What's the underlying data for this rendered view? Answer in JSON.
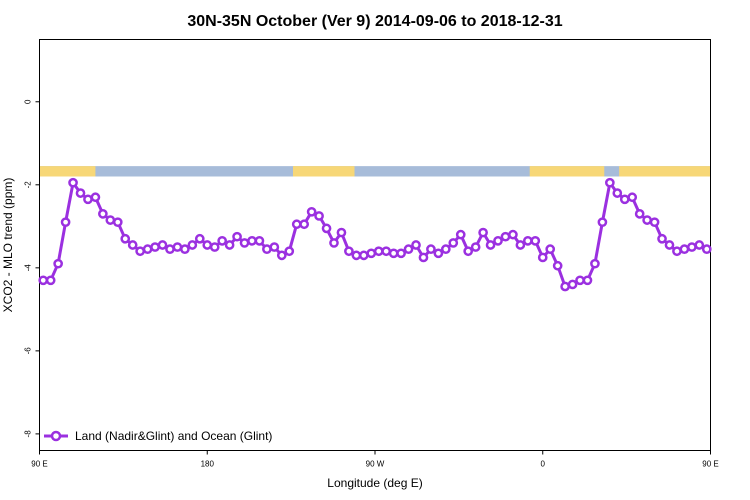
{
  "chart_data": {
    "type": "line",
    "title": "30N-35N October (Ver 9)   2014-09-06 to 2018-12-31",
    "xlabel": "Longitude (deg E)",
    "ylabel": "XCO2 - MLO trend (ppm)",
    "xlim": [
      90,
      450
    ],
    "ylim": [
      -8.4,
      1.5
    ],
    "x_ticks": [
      {
        "value": 90,
        "label": "90 E"
      },
      {
        "value": 180,
        "label": "180"
      },
      {
        "value": 270,
        "label": "90 W"
      },
      {
        "value": 360,
        "label": "0"
      },
      {
        "value": 450,
        "label": "90 E"
      },
      {
        "value": 540,
        "label": "180"
      }
    ],
    "y_ticks": [
      {
        "value": 0,
        "label": "0"
      },
      {
        "value": -2,
        "label": "-2"
      },
      {
        "value": -4,
        "label": "-4"
      },
      {
        "value": -6,
        "label": "-6"
      },
      {
        "value": -8,
        "label": "-8"
      }
    ],
    "grid": false,
    "legend_position": "bottom-left",
    "colors": {
      "series": "#9b30e0",
      "land": "#f7d777",
      "ocean": "#a7bcd9"
    },
    "land_mask": {
      "y_range": [
        -1.8,
        -1.55
      ],
      "land_segments": [
        [
          90,
          120
        ],
        [
          226,
          259
        ],
        [
          353,
          393
        ],
        [
          401,
          455
        ],
        [
          481,
          528
        ]
      ],
      "ocean_color": "ocean",
      "land_color": "land"
    },
    "series": [
      {
        "name": "Land (Nadir&Glint) and Ocean (Glint)",
        "x": [
          92,
          96,
          100,
          104,
          108,
          112,
          116,
          120,
          124,
          128,
          132,
          136,
          140,
          144,
          148,
          152,
          156,
          160,
          164,
          168,
          172,
          176,
          180,
          184,
          188,
          192,
          196,
          200,
          204,
          208,
          212,
          216,
          220,
          224,
          228,
          232,
          236,
          240,
          244,
          248,
          252,
          256,
          260,
          264,
          268,
          272,
          276,
          280,
          284,
          288,
          292,
          296,
          300,
          304,
          308,
          312,
          316,
          320,
          324,
          328,
          332,
          336,
          340,
          344,
          348,
          352,
          356,
          360,
          364,
          368,
          372,
          376,
          380,
          384,
          388,
          392,
          396,
          400,
          404,
          408,
          412,
          416,
          420,
          424,
          428,
          432,
          436,
          440,
          444,
          448
        ],
        "y": [
          -4.3,
          -4.3,
          -3.9,
          -2.9,
          -1.95,
          -2.2,
          -2.35,
          -2.3,
          -2.7,
          -2.85,
          -2.9,
          -3.3,
          -3.45,
          -3.6,
          -3.55,
          -3.5,
          -3.45,
          -3.55,
          -3.5,
          -3.55,
          -3.45,
          -3.3,
          -3.45,
          -3.5,
          -3.35,
          -3.45,
          -3.25,
          -3.4,
          -3.35,
          -3.35,
          -3.55,
          -3.5,
          -3.7,
          -3.6,
          -2.95,
          -2.95,
          -2.65,
          -2.75,
          -3.05,
          -3.4,
          -3.15,
          -3.6,
          -3.7,
          -3.7,
          -3.65,
          -3.6,
          -3.6,
          -3.65,
          -3.65,
          -3.55,
          -3.45,
          -3.75,
          -3.55,
          -3.65,
          -3.55,
          -3.4,
          -3.2,
          -3.6,
          -3.5,
          -3.15,
          -3.45,
          -3.35,
          -3.25,
          -3.2,
          -3.45,
          -3.35,
          -3.35,
          -3.75,
          -3.55,
          -3.95,
          -4.45,
          -4.4,
          -4.3,
          -4.3,
          -3.9,
          -2.9,
          -1.95,
          -2.2,
          -2.35,
          -2.3,
          -2.7,
          -2.85,
          -2.9,
          -3.3,
          -3.45,
          -3.6,
          -3.55,
          -3.5,
          -3.45,
          -3.55
        ]
      }
    ]
  }
}
